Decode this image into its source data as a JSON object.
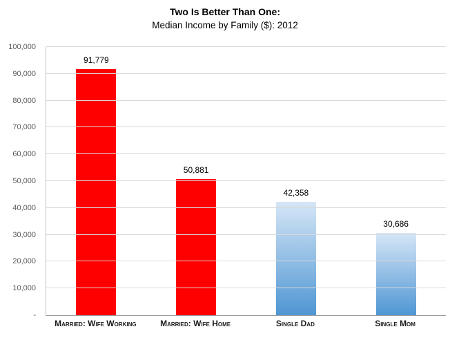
{
  "chart_data": {
    "type": "bar",
    "title": "Two Is Better Than One:",
    "subtitle": "Median Income by Family ($): 2012",
    "categories": [
      "Married: Wife Working",
      "Married: Wife Home",
      "Single Dad",
      "Single Mom"
    ],
    "values": [
      91779,
      50881,
      42358,
      30686
    ],
    "value_labels": [
      "91,779",
      "50,881",
      "42,358",
      "30,686"
    ],
    "bar_fills": [
      {
        "type": "solid",
        "color": "#ff0000"
      },
      {
        "type": "solid",
        "color": "#ff0000"
      },
      {
        "type": "gradient",
        "from": "#d6e6f7",
        "to": "#4f96d3"
      },
      {
        "type": "gradient",
        "from": "#d6e6f7",
        "to": "#4f96d3"
      }
    ],
    "ylim": [
      0,
      100000
    ],
    "yticks": [
      {
        "value": 0,
        "label": "-"
      },
      {
        "value": 10000,
        "label": "10,000"
      },
      {
        "value": 20000,
        "label": "20,000"
      },
      {
        "value": 30000,
        "label": "30,000"
      },
      {
        "value": 40000,
        "label": "40,000"
      },
      {
        "value": 50000,
        "label": "50,000"
      },
      {
        "value": 60000,
        "label": "60,000"
      },
      {
        "value": 70000,
        "label": "70,000"
      },
      {
        "value": 80000,
        "label": "80,000"
      },
      {
        "value": 90000,
        "label": "90,000"
      },
      {
        "value": 100000,
        "label": "100,000"
      }
    ],
    "grid": "horizontal",
    "legend": "none",
    "style": {
      "gridline_color": "#d9d9d9",
      "axis_line_color": "#9d9d9d",
      "tick_text_color": "#595959"
    }
  }
}
